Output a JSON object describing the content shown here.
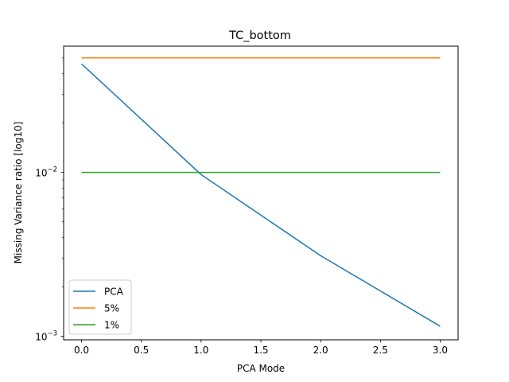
{
  "chart_data": {
    "type": "line",
    "title": "TC_bottom",
    "xlabel": "PCA Mode",
    "ylabel": "Missing Variance ratio [log10]",
    "xlim": [
      -0.15,
      3.15
    ],
    "ylim": [
      0.00095,
      0.059
    ],
    "yscale": "log",
    "grid": false,
    "legend_position": "lower-left",
    "x_ticks": [
      {
        "value": 0.0,
        "label": "0.0"
      },
      {
        "value": 0.5,
        "label": "0.5"
      },
      {
        "value": 1.0,
        "label": "1.0"
      },
      {
        "value": 1.5,
        "label": "1.5"
      },
      {
        "value": 2.0,
        "label": "2.0"
      },
      {
        "value": 2.5,
        "label": "2.5"
      },
      {
        "value": 3.0,
        "label": "3.0"
      }
    ],
    "y_major_ticks": [
      {
        "value": 0.001,
        "base": "10",
        "exp": "−3"
      },
      {
        "value": 0.01,
        "base": "10",
        "exp": "−2"
      }
    ],
    "y_minor_ticks": [
      0.002,
      0.003,
      0.004,
      0.005,
      0.006,
      0.007,
      0.008,
      0.009,
      0.02,
      0.03,
      0.04,
      0.05
    ],
    "series": [
      {
        "name": "PCA",
        "color": "#1f77b4",
        "x": [
          0,
          1,
          2,
          3
        ],
        "y": [
          0.046,
          0.0097,
          0.0031,
          0.00115
        ]
      },
      {
        "name": "5%",
        "color": "#ff7f0e",
        "x": [
          0,
          1,
          2,
          3
        ],
        "y": [
          0.05,
          0.05,
          0.05,
          0.05
        ]
      },
      {
        "name": "1%",
        "color": "#2ca02c",
        "x": [
          0,
          1,
          2,
          3
        ],
        "y": [
          0.01,
          0.01,
          0.01,
          0.01
        ]
      }
    ]
  }
}
